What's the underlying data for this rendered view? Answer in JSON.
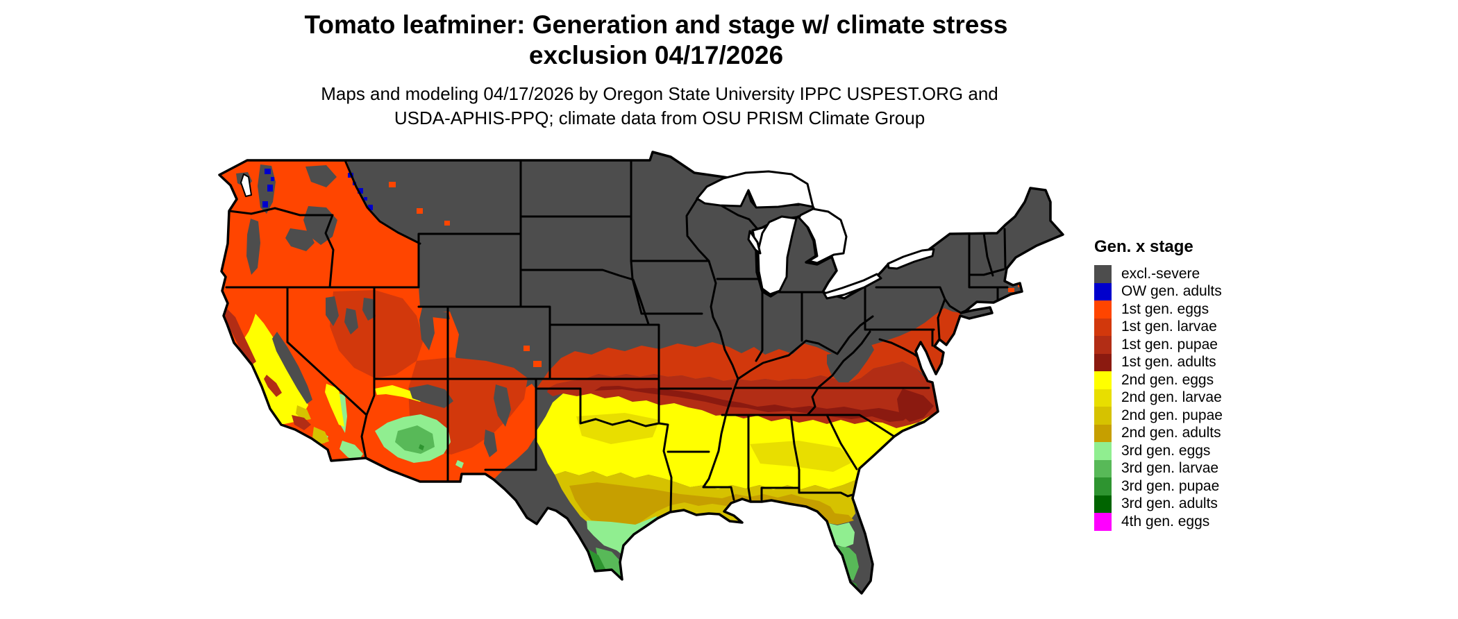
{
  "title": {
    "line1": "Tomato leafminer: Generation and stage w/ climate stress",
    "line2": "exclusion 04/17/2026"
  },
  "subtitle": {
    "line1": "Maps and modeling 04/17/2026 by Oregon State University IPPC USPEST.ORG and",
    "line2": "USDA-APHIS-PPQ; climate data from OSU PRISM Climate Group"
  },
  "legend": {
    "title": "Gen. x stage",
    "items": [
      {
        "label": "excl.-severe",
        "color": "#4D4D4D"
      },
      {
        "label": "OW gen. adults",
        "color": "#0000CC"
      },
      {
        "label": "1st gen. eggs",
        "color": "#FF4500"
      },
      {
        "label": "1st gen. larvae",
        "color": "#D2380C"
      },
      {
        "label": "1st gen. pupae",
        "color": "#B22D15"
      },
      {
        "label": "1st gen. adults",
        "color": "#8B1A10"
      },
      {
        "label": "2nd gen. eggs",
        "color": "#FFFF00"
      },
      {
        "label": "2nd gen. larvae",
        "color": "#E8DE00"
      },
      {
        "label": "2nd gen. pupae",
        "color": "#D6C200"
      },
      {
        "label": "2nd gen. adults",
        "color": "#C69F00"
      },
      {
        "label": "3rd gen. eggs",
        "color": "#90EE90"
      },
      {
        "label": "3rd gen. larvae",
        "color": "#58B958"
      },
      {
        "label": "3rd gen. pupae",
        "color": "#2E9430"
      },
      {
        "label": "3rd gen. adults",
        "color": "#006400"
      },
      {
        "label": "4th gen. eggs",
        "color": "#FF00FF"
      }
    ]
  },
  "map": {
    "water_color": "#FFFFFF",
    "border_color": "#000000"
  }
}
